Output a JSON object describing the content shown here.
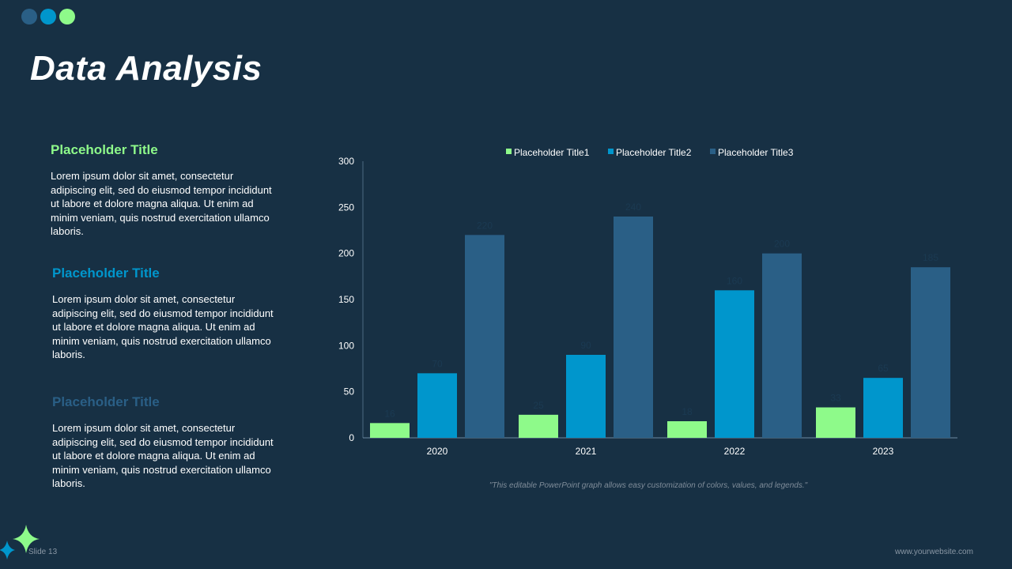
{
  "header": {
    "title": "Data Analysis"
  },
  "decor_dots": [
    "#2a5f86",
    "#0096cc",
    "#8efa8a"
  ],
  "sections": [
    {
      "title": "Placeholder Title",
      "color": "#8efa8a",
      "body": "Lorem ipsum dolor sit amet, consectetur adipiscing elit, sed do eiusmod tempor incididunt ut labore et dolore magna aliqua. Ut enim ad minim veniam, quis nostrud exercitation ullamco laboris."
    },
    {
      "title": "Placeholder Title",
      "color": "#0096cc",
      "body": "Lorem ipsum dolor sit amet, consectetur adipiscing elit, sed do eiusmod tempor incididunt ut labore et dolore magna aliqua. Ut enim ad minim veniam, quis nostrud exercitation ullamco laboris."
    },
    {
      "title": "Placeholder Title",
      "color": "#2a5f86",
      "body": "Lorem ipsum dolor sit amet, consectetur adipiscing elit, sed do eiusmod tempor incididunt ut labore et dolore magna aliqua. Ut enim ad minim veniam, quis nostrud exercitation ullamco laboris."
    }
  ],
  "chart_data": {
    "type": "bar",
    "categories": [
      "2020",
      "2021",
      "2022",
      "2023"
    ],
    "series": [
      {
        "name": "Placeholder Title1",
        "color": "#8efa8a",
        "values": [
          16,
          25,
          18,
          33
        ]
      },
      {
        "name": "Placeholder Title2",
        "color": "#0096cc",
        "values": [
          70,
          90,
          160,
          65
        ]
      },
      {
        "name": "Placeholder Title3",
        "color": "#2a5f86",
        "values": [
          220,
          240,
          200,
          185
        ]
      }
    ],
    "ylim": [
      0,
      300
    ],
    "yticks": [
      0,
      50,
      100,
      150,
      200,
      250,
      300
    ],
    "grid": false,
    "legend": "top",
    "data_labels": true
  },
  "caption": "\"This editable PowerPoint graph allows easy customization of colors, values, and legends.\"",
  "footer": {
    "slide": "Slide 13",
    "website": "www.yourwebsite.com"
  }
}
